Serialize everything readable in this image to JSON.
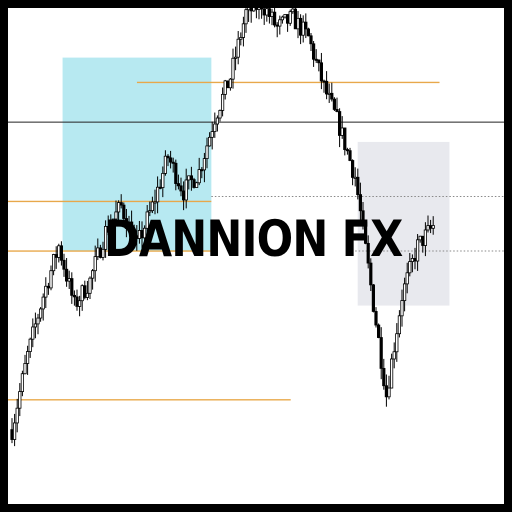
{
  "watermark": {
    "text": "DANNION FX"
  },
  "colors": {
    "frame": "#000000",
    "background": "#ffffff",
    "candle": "#000000",
    "demand_zone": "#b3e8f0",
    "neutral_zone": "#e6e7ec",
    "level_orange": "#e8a84a",
    "level_black": "#222222",
    "level_dotted": "#888888"
  },
  "chart_data": {
    "type": "candlestick",
    "title": "",
    "xlabel": "",
    "ylabel": "",
    "grid": false,
    "ylim": [
      0,
      100
    ],
    "candle_count": 200,
    "price_path": [
      [
        0,
        15
      ],
      [
        6,
        30
      ],
      [
        12,
        42
      ],
      [
        18,
        52
      ],
      [
        24,
        40
      ],
      [
        30,
        45
      ],
      [
        36,
        55
      ],
      [
        42,
        60
      ],
      [
        48,
        52
      ],
      [
        54,
        60
      ],
      [
        60,
        70
      ],
      [
        66,
        63
      ],
      [
        72,
        67
      ],
      [
        78,
        78
      ],
      [
        84,
        86
      ],
      [
        90,
        99
      ],
      [
        96,
        101
      ],
      [
        102,
        96
      ],
      [
        108,
        98
      ],
      [
        114,
        94
      ],
      [
        120,
        84
      ],
      [
        126,
        76
      ],
      [
        132,
        66
      ],
      [
        138,
        44
      ],
      [
        144,
        22
      ],
      [
        150,
        42
      ],
      [
        156,
        52
      ],
      [
        162,
        56
      ]
    ],
    "zones": [
      {
        "name": "demand-zone",
        "x0": 22,
        "x1": 82,
        "y0": 51,
        "y1": 90
      },
      {
        "name": "neutral-zone",
        "x0": 141,
        "x1": 178,
        "y0": 40,
        "y1": 73
      }
    ],
    "levels": [
      {
        "name": "resistance-orange",
        "y": 85,
        "x0": 52,
        "x1": 174,
        "style": "orange"
      },
      {
        "name": "horizontal-black",
        "y": 77,
        "x0": 0,
        "x1": 200,
        "style": "black"
      },
      {
        "name": "orange-mid",
        "y": 61,
        "x0": 0,
        "x1": 82,
        "style": "orange"
      },
      {
        "name": "dotted-upper",
        "y": 62,
        "x0": 82,
        "x1": 200,
        "style": "dotted"
      },
      {
        "name": "orange-lower",
        "y": 51,
        "x0": 0,
        "x1": 82,
        "style": "orange"
      },
      {
        "name": "dotted-lower",
        "y": 51,
        "x0": 140,
        "x1": 200,
        "style": "dotted"
      },
      {
        "name": "support-orange",
        "y": 21,
        "x0": 0,
        "x1": 114,
        "style": "orange"
      }
    ]
  }
}
